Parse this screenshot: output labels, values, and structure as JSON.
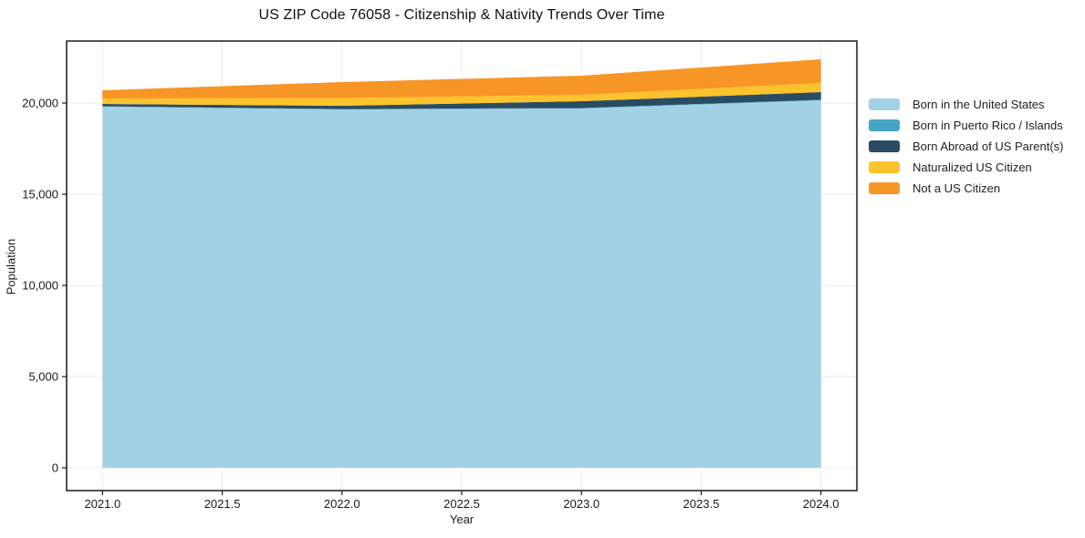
{
  "page": {
    "title": "US ZIP Code 76058 - Citizenship & Nativity Trends Over Time"
  },
  "chart_data": {
    "type": "area",
    "stacked": true,
    "title": "US ZIP Code 76058 - Citizenship & Nativity Trends Over Time",
    "xlabel": "Year",
    "ylabel": "Population",
    "x": [
      2021,
      2022,
      2023,
      2024
    ],
    "series": [
      {
        "name": "Born in the United States",
        "color": "#a2d1e6",
        "values": [
          19800,
          19650,
          19700,
          20150
        ]
      },
      {
        "name": "Born in Puerto Rico / Islands",
        "color": "#44a5c6",
        "values": [
          20,
          20,
          25,
          30
        ]
      },
      {
        "name": "Born Abroad of US Parent(s)",
        "color": "#2a4c62",
        "values": [
          130,
          180,
          375,
          420
        ]
      },
      {
        "name": "Naturalized US Citizen",
        "color": "#fcc32c",
        "values": [
          300,
          420,
          350,
          500
        ]
      },
      {
        "name": "Not a US Citizen",
        "color": "#f79626",
        "values": [
          450,
          880,
          1050,
          1300
        ]
      }
    ],
    "totals": [
      20700,
      21150,
      21500,
      22400
    ],
    "xlim": [
      2020.85,
      2024.15
    ],
    "ylim": [
      -1250,
      23400
    ],
    "xticks": {
      "values": [
        2021.0,
        2021.5,
        2022.0,
        2022.5,
        2023.0,
        2023.5,
        2024.0
      ],
      "labels": [
        "2021.0",
        "2021.5",
        "2022.0",
        "2022.5",
        "2023.0",
        "2023.5",
        "2024.0"
      ]
    },
    "yticks": {
      "values": [
        0,
        5000,
        10000,
        15000,
        20000
      ],
      "labels": [
        "0",
        "5,000",
        "10,000",
        "15,000",
        "20,000"
      ]
    },
    "grid": true,
    "grid_color": "#ebebeb",
    "spine_color": "#1a1a1a",
    "legend_position": "right",
    "background_color": "#ffffff"
  }
}
